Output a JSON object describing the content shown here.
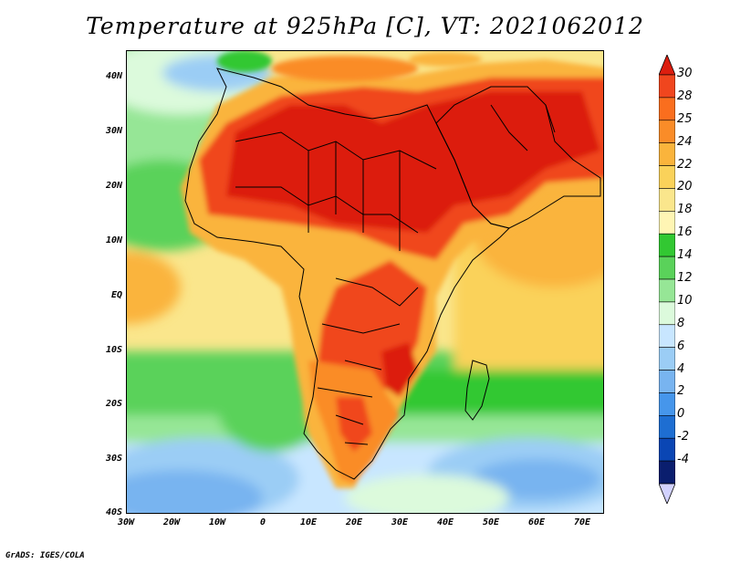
{
  "title": "Temperature at 925hPa [C], VT: 2021062012",
  "footer": "GrADS: IGES/COLA",
  "axes": {
    "lat_labels": [
      "40N",
      "30N",
      "20N",
      "10N",
      "EQ",
      "10S",
      "20S",
      "30S",
      "40S"
    ],
    "lon_labels": [
      "30W",
      "20W",
      "10W",
      "0",
      "10E",
      "20E",
      "30E",
      "40E",
      "50E",
      "60E",
      "70E"
    ]
  },
  "colorbar": {
    "labels": [
      "30",
      "28",
      "25",
      "24",
      "22",
      "20",
      "18",
      "16",
      "14",
      "12",
      "10",
      "8",
      "6",
      "4",
      "2",
      "0",
      "-2",
      "-4"
    ],
    "colors": [
      "#dc1e0f",
      "#f0461e",
      "#fa6e1e",
      "#fa8c28",
      "#fab43c",
      "#fad25a",
      "#fae68c",
      "#fff5b4",
      "#32c832",
      "#5ad25a",
      "#96e696",
      "#dcfadc",
      "#c8e6ff",
      "#9bcdf5",
      "#78b4f0",
      "#4696eb",
      "#1e6ed2",
      "#0a46b4",
      "#0a1e6e",
      "#d2d2ff"
    ]
  },
  "icons": {
    "arrow_up": "colorbar-max-arrow",
    "arrow_down": "colorbar-min-arrow"
  }
}
